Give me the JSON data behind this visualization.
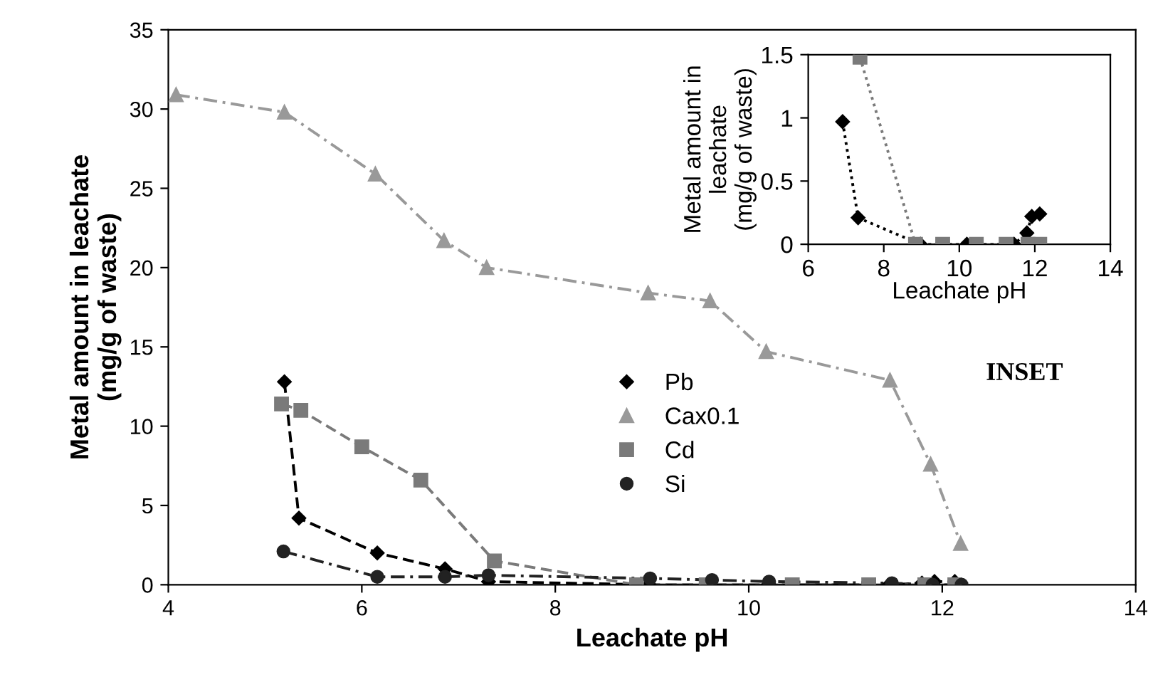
{
  "chart_data": [
    {
      "type": "line",
      "xlabel": "Leachate pH",
      "ylabel": "Metal amount in leachate\n(mg/g of waste)",
      "xlim": [
        4,
        14
      ],
      "ylim": [
        0,
        35
      ],
      "xticks": [
        4,
        6,
        8,
        10,
        12,
        14
      ],
      "yticks": [
        0,
        5,
        10,
        15,
        20,
        25,
        30,
        35
      ],
      "grid": false,
      "legend": "center",
      "annotations": [
        "INSET"
      ],
      "series": [
        {
          "name": "Pb",
          "color": "#000000",
          "marker": "diamond",
          "line_style": "dashed",
          "x": [
            5.2,
            5.35,
            6.16,
            6.86,
            7.31,
            8.97,
            10.2,
            11.45,
            11.79,
            11.92,
            12.13
          ],
          "values": [
            12.8,
            4.2,
            2.0,
            1.0,
            0.2,
            0,
            0,
            0,
            0.1,
            0.2,
            0.2
          ]
        },
        {
          "name": "Cax0.1",
          "color": "#999999",
          "marker": "triangle",
          "line_style": "dashdot",
          "x": [
            4.08,
            5.2,
            6.14,
            6.85,
            7.29,
            8.96,
            9.6,
            10.18,
            11.46,
            11.88,
            12.19
          ],
          "values": [
            30.9,
            29.8,
            25.9,
            21.7,
            20.0,
            18.4,
            17.9,
            14.7,
            12.9,
            7.6,
            2.6
          ]
        },
        {
          "name": "Cd",
          "color": "#7a7a7a",
          "marker": "square",
          "line_style": "dashed",
          "x": [
            5.17,
            5.37,
            6.0,
            6.61,
            7.37,
            8.84,
            9.56,
            10.45,
            11.24,
            11.82,
            12.13
          ],
          "values": [
            11.4,
            11.0,
            8.7,
            6.6,
            1.5,
            0,
            0,
            0,
            0,
            0,
            0
          ]
        },
        {
          "name": "Si",
          "color": "#222222",
          "marker": "circle",
          "line_style": "dashdot",
          "x": [
            5.19,
            6.16,
            6.86,
            7.31,
            8.98,
            9.62,
            10.21,
            11.48,
            11.9,
            12.2
          ],
          "values": [
            2.1,
            0.5,
            0.5,
            0.6,
            0.4,
            0.3,
            0.2,
            0.1,
            0,
            0
          ]
        }
      ]
    },
    {
      "type": "line",
      "xlabel": "Leachate pH",
      "ylabel": "Metal amount in\nleachate\n(mg/g of waste)",
      "xlim": [
        6,
        14
      ],
      "ylim": [
        0,
        1.5
      ],
      "xticks": [
        6,
        8,
        10,
        12,
        14
      ],
      "yticks": [
        0,
        0.5,
        1,
        1.5
      ],
      "grid": false,
      "legend": false,
      "series": [
        {
          "color": "#000000",
          "marker": "diamond",
          "line_style": "dotted",
          "x": [
            6.91,
            7.32,
            8.97,
            10.2,
            11.45,
            11.79,
            11.92,
            12.13
          ],
          "values": [
            0.97,
            0.21,
            0,
            0,
            0,
            0.09,
            0.22,
            0.24
          ]
        },
        {
          "color": "#7a7a7a",
          "marker": "square",
          "line_style": "dotted",
          "x": [
            7.37,
            8.84,
            9.56,
            10.45,
            11.24,
            11.82,
            12.13
          ],
          "values": [
            1.48,
            0,
            0,
            0,
            0,
            0,
            0
          ]
        }
      ]
    }
  ]
}
